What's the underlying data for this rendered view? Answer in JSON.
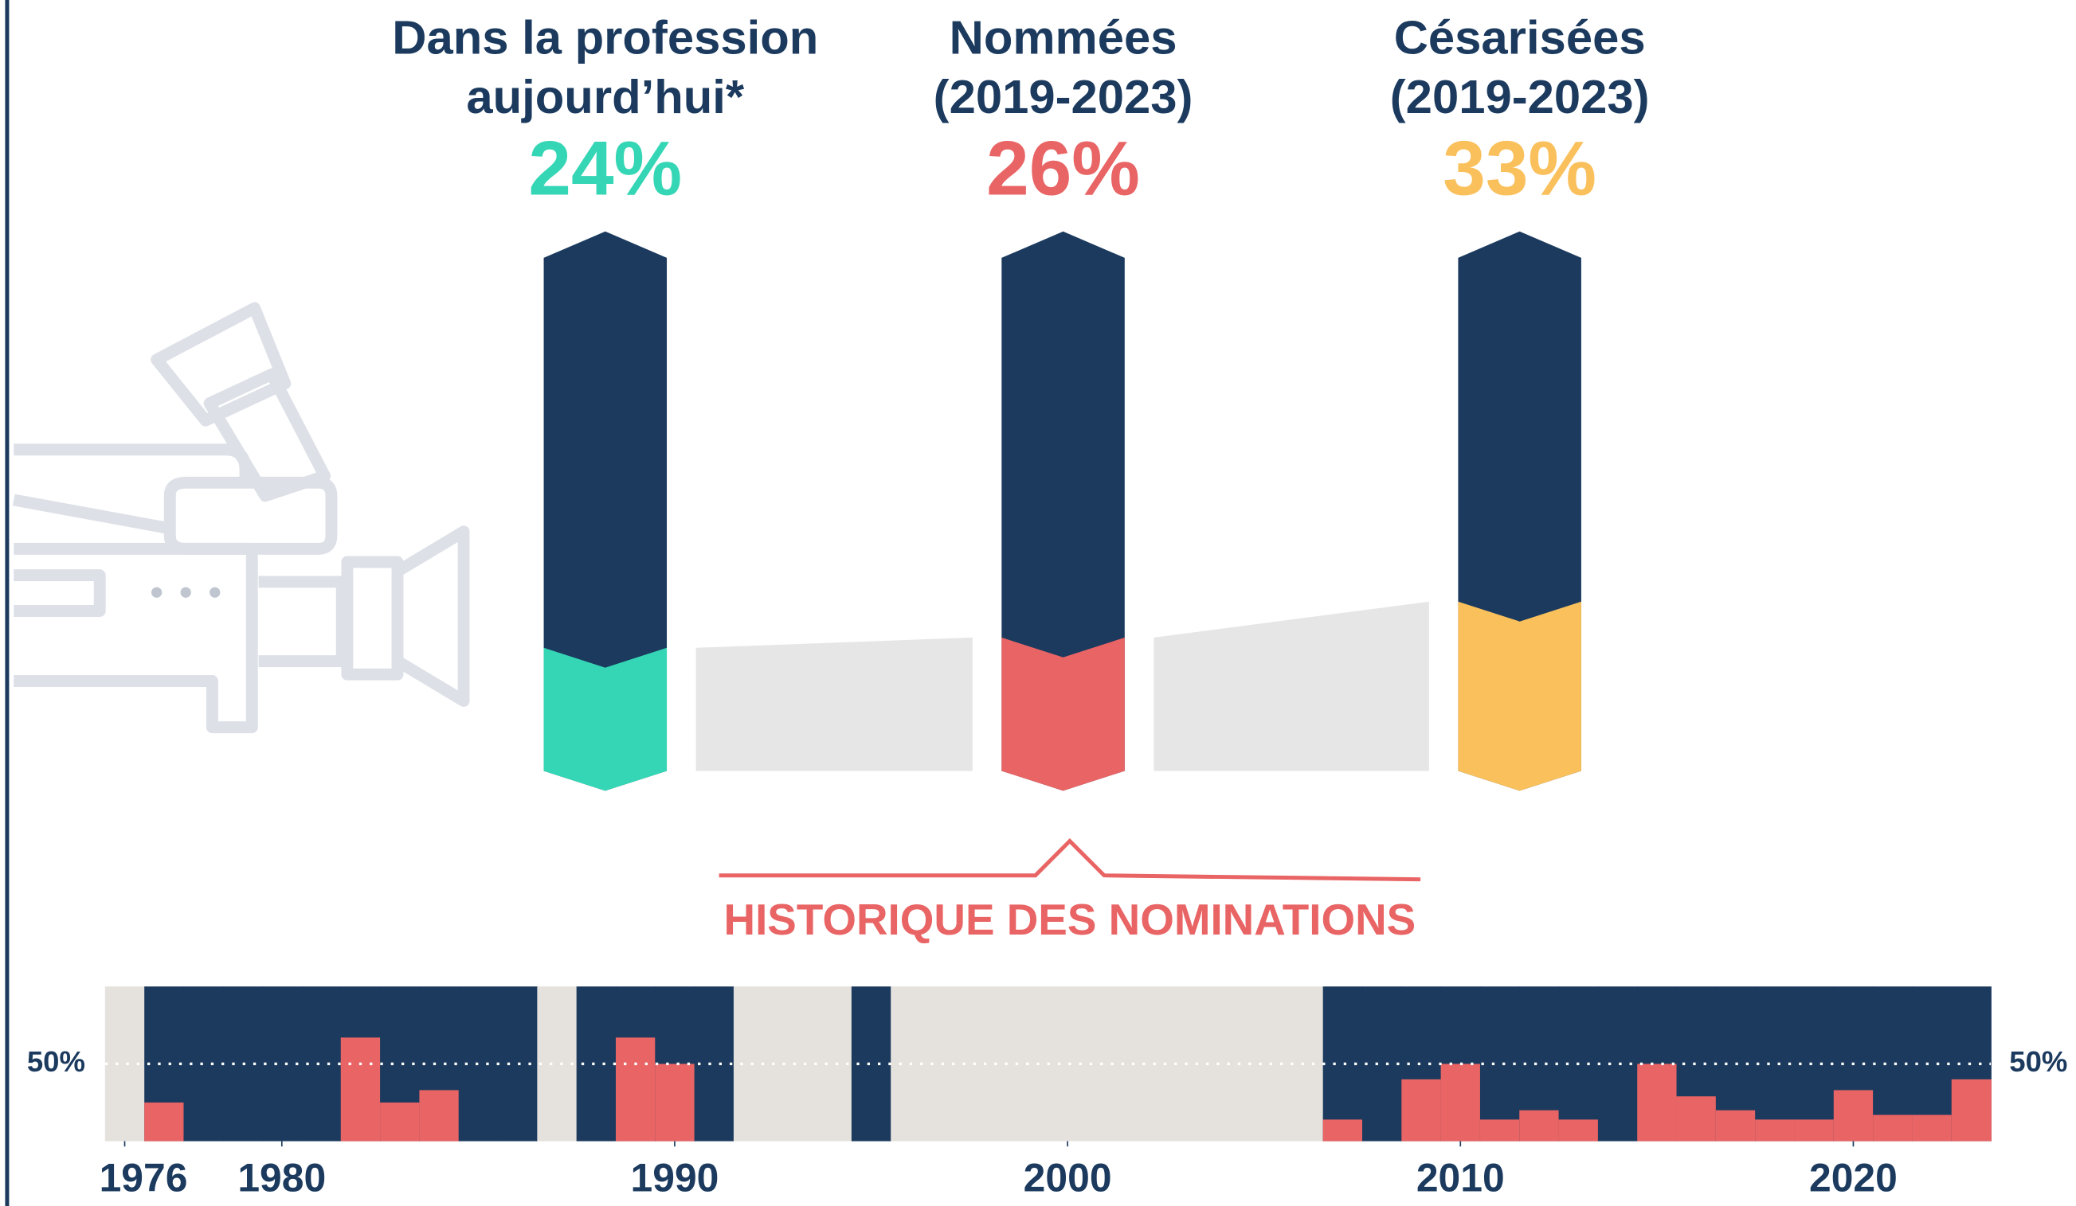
{
  "chart_data": [
    {
      "type": "bar",
      "categories": [
        [
          "Dans la profession",
          "aujourd’hui*"
        ],
        [
          "Nommées",
          "(2019-2023)"
        ],
        [
          "Césarisées",
          "(2019-2023)"
        ]
      ],
      "values": [
        24,
        26,
        33
      ],
      "value_labels": [
        "24%",
        "26%",
        "33%"
      ],
      "colors": [
        "#35d6b5",
        "#e96464",
        "#f9c05c"
      ],
      "ylim": [
        0,
        100
      ]
    },
    {
      "type": "histo",
      "title": "HISTORIQUE DES NOMINATIONS",
      "x": [
        1976,
        1977,
        1978,
        1979,
        1980,
        1981,
        1982,
        1983,
        1984,
        1985,
        1986,
        1987,
        1988,
        1989,
        1990,
        1991,
        1992,
        1993,
        1994,
        1995,
        1996,
        1997,
        1998,
        1999,
        2000,
        2001,
        2002,
        2003,
        2004,
        2005,
        2006,
        2007,
        2008,
        2009,
        2010,
        2011,
        2012,
        2013,
        2014,
        2015,
        2016,
        2017,
        2018,
        2019,
        2020,
        2021,
        2022,
        2023
      ],
      "values": [
        null,
        25,
        0,
        0,
        0,
        0,
        67,
        25,
        33,
        0,
        0,
        null,
        0,
        67,
        50,
        0,
        null,
        null,
        null,
        0,
        null,
        null,
        null,
        null,
        null,
        null,
        null,
        null,
        null,
        null,
        null,
        14,
        0,
        40,
        50,
        14,
        20,
        14,
        0,
        50,
        29,
        20,
        14,
        14,
        33,
        17,
        17,
        40
      ],
      "color": "#e96464",
      "xlim": [
        1975.5,
        2023.5
      ],
      "xticks": [
        1976,
        1980,
        1990,
        2000,
        2010,
        2020
      ],
      "ylim": [
        0,
        100
      ],
      "ref_line": {
        "value": 50,
        "label": "50%"
      }
    }
  ]
}
